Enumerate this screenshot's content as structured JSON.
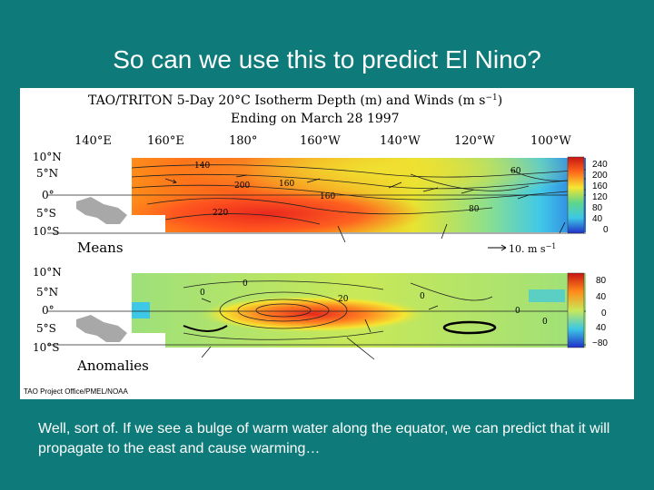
{
  "slide": {
    "title": "So can we use this to predict El Nino?",
    "caption": "Well, sort of. If we see a bulge of warm water along the equator, we can predict that it will propagate to the east and cause warming…"
  },
  "figure": {
    "title_line1": "TAO/TRITON 5-Day 20°C Isotherm Depth (m) and Winds (m s",
    "title_line1_exp": "−1",
    "title_line1_end": ")",
    "title_line2": "Ending on March 28 1997",
    "lon_ticks": [
      "140°E",
      "160°E",
      "180°",
      "160°W",
      "140°W",
      "120°W",
      "100°W"
    ],
    "lat_ticks": [
      "10°N",
      "5°N",
      "0°",
      "5°S",
      "10°S"
    ],
    "means_label": "Means",
    "anomalies_label": "Anomalies",
    "wind_scale_label": "10.  m s",
    "wind_scale_exp": "−1",
    "means_colorbar": [
      "240",
      "200",
      "160",
      "120",
      "80",
      "40",
      "0"
    ],
    "anom_colorbar": [
      "80",
      "40",
      "0",
      "40",
      "−80"
    ],
    "means_contours": [
      "140",
      "200",
      "160",
      "220",
      "160",
      "60",
      "80"
    ],
    "anom_contours": [
      "0",
      "0",
      "20",
      "0",
      "0",
      "0"
    ],
    "credit": "TAO Project Office/PMEL/NOAA",
    "colors": {
      "warm": "#e8321e",
      "hot": "#ff7a1a",
      "yellow": "#f5e632",
      "green": "#5ed68a",
      "cyan": "#3cc8e6",
      "blue": "#2050d8",
      "land": "#a8a8a8"
    }
  }
}
